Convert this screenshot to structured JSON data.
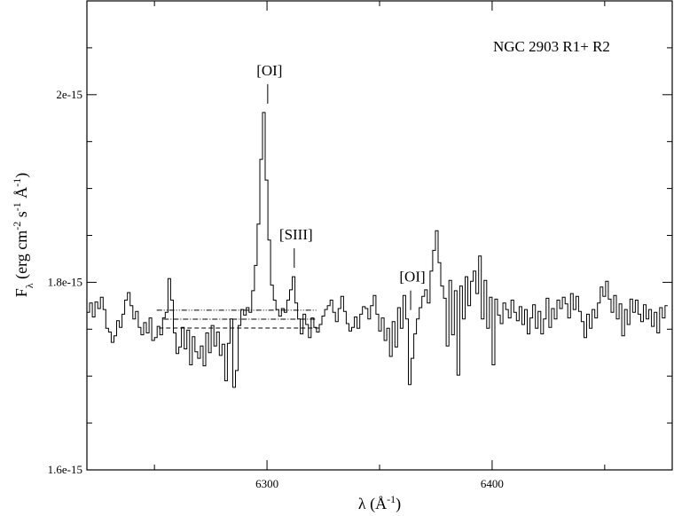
{
  "chart_data": {
    "type": "line",
    "title": "",
    "annotations": {
      "object_label": "NGC 2903  R1+ R2",
      "lines": [
        {
          "label": "[OI]",
          "x": 6300.3
        },
        {
          "label": "[SIII]",
          "x": 6312.1
        },
        {
          "label": "[OI]",
          "x": 6363.8
        }
      ]
    },
    "xlabel": {
      "main": "λ (Å",
      "sup": "-1",
      "close": ")"
    },
    "ylabel": {
      "base": "F",
      "sub": "λ",
      "mid": " (erg cm",
      "sup1": "-2",
      "mid2": " s",
      "sup2": "-1",
      "mid3": " Å",
      "sup3": "-1",
      "close": ")"
    },
    "xlim": [
      6220,
      6480
    ],
    "ylim": [
      1.6e-15,
      2.1e-15
    ],
    "x_ticks": [
      {
        "value": 6300,
        "label": "6300"
      },
      {
        "value": 6400,
        "label": "6400"
      }
    ],
    "y_ticks": [
      {
        "value": 1.6e-15,
        "label": "1.6e-15"
      },
      {
        "value": 1.8e-15,
        "label": "1.8e-15"
      },
      {
        "value": 2e-15,
        "label": "2e-15"
      }
    ],
    "grid": false,
    "continuum_levels": [
      {
        "name": "dash-dot-dot",
        "x": [
          6251,
          6322
        ],
        "y": 1.7702e-15
      },
      {
        "name": "dash-dot",
        "x": [
          6254,
          6322
        ],
        "y": 1.7607e-15
      },
      {
        "name": "dashed",
        "x": [
          6252,
          6323
        ],
        "y": 1.7512e-15
      }
    ],
    "series": [
      {
        "x_start": 6220,
        "x_step": 1.2,
        "values": [
          1.768e-15,
          1.778e-15,
          1.763e-15,
          1.779e-15,
          1.772e-15,
          1.784e-15,
          1.771e-15,
          1.751e-15,
          1.747e-15,
          1.736e-15,
          1.743e-15,
          1.759e-15,
          1.752e-15,
          1.766e-15,
          1.781e-15,
          1.789e-15,
          1.775e-15,
          1.761e-15,
          1.769e-15,
          1.752e-15,
          1.744e-15,
          1.757e-15,
          1.746e-15,
          1.762e-15,
          1.738e-15,
          1.741e-15,
          1.753e-15,
          1.744e-15,
          1.762e-15,
          1.768e-15,
          1.804e-15,
          1.781e-15,
          1.746e-15,
          1.724e-15,
          1.731e-15,
          1.752e-15,
          1.729e-15,
          1.749e-15,
          1.712e-15,
          1.742e-15,
          1.726e-15,
          1.719e-15,
          1.732e-15,
          1.711e-15,
          1.746e-15,
          1.725e-15,
          1.754e-15,
          1.732e-15,
          1.747e-15,
          1.722e-15,
          1.734e-15,
          1.695e-15,
          1.735e-15,
          1.761e-15,
          1.688e-15,
          1.706e-15,
          1.754e-15,
          1.771e-15,
          1.765e-15,
          1.773e-15,
          1.768e-15,
          1.791e-15,
          1.818e-15,
          1.862e-15,
          1.931e-15,
          1.981e-15,
          1.909e-15,
          1.845e-15,
          1.797e-15,
          1.781e-15,
          1.771e-15,
          1.764e-15,
          1.772e-15,
          1.768e-15,
          1.781e-15,
          1.792e-15,
          1.806e-15,
          1.778e-15,
          1.761e-15,
          1.745e-15,
          1.766e-15,
          1.755e-15,
          1.741e-15,
          1.762e-15,
          1.752e-15,
          1.747e-15,
          1.755e-15,
          1.764e-15,
          1.771e-15,
          1.775e-15,
          1.781e-15,
          1.768e-15,
          1.758e-15,
          1.772e-15,
          1.785e-15,
          1.769e-15,
          1.756e-15,
          1.748e-15,
          1.752e-15,
          1.763e-15,
          1.751e-15,
          1.766e-15,
          1.774e-15,
          1.772e-15,
          1.761e-15,
          1.775e-15,
          1.786e-15,
          1.766e-15,
          1.748e-15,
          1.762e-15,
          1.738e-15,
          1.751e-15,
          1.721e-15,
          1.758e-15,
          1.731e-15,
          1.773e-15,
          1.751e-15,
          1.786e-15,
          1.761e-15,
          1.691e-15,
          1.719e-15,
          1.745e-15,
          1.761e-15,
          1.773e-15,
          1.785e-15,
          1.792e-15,
          1.778e-15,
          1.812e-15,
          1.834e-15,
          1.855e-15,
          1.821e-15,
          1.796e-15,
          1.783e-15,
          1.732e-15,
          1.802e-15,
          1.744e-15,
          1.791e-15,
          1.701e-15,
          1.796e-15,
          1.761e-15,
          1.806e-15,
          1.775e-15,
          1.801e-15,
          1.812e-15,
          1.788e-15,
          1.828e-15,
          1.761e-15,
          1.802e-15,
          1.751e-15,
          1.784e-15,
          1.712e-15,
          1.782e-15,
          1.765e-15,
          1.756e-15,
          1.778e-15,
          1.771e-15,
          1.762e-15,
          1.781e-15,
          1.768e-15,
          1.759e-15,
          1.774e-15,
          1.755e-15,
          1.771e-15,
          1.745e-15,
          1.762e-15,
          1.776e-15,
          1.751e-15,
          1.769e-15,
          1.745e-15,
          1.761e-15,
          1.783e-15,
          1.752e-15,
          1.772e-15,
          1.761e-15,
          1.781e-15,
          1.772e-15,
          1.784e-15,
          1.777e-15,
          1.762e-15,
          1.788e-15,
          1.771e-15,
          1.785e-15,
          1.769e-15,
          1.758e-15,
          1.741e-15,
          1.766e-15,
          1.751e-15,
          1.771e-15,
          1.762e-15,
          1.778e-15,
          1.795e-15,
          1.785e-15,
          1.801e-15,
          1.782e-15,
          1.768e-15,
          1.786e-15,
          1.761e-15,
          1.777e-15,
          1.743e-15,
          1.771e-15,
          1.755e-15,
          1.782e-15,
          1.768e-15,
          1.781e-15,
          1.766e-15,
          1.758e-15,
          1.776e-15,
          1.761e-15,
          1.771e-15,
          1.753e-15,
          1.768e-15,
          1.746e-15,
          1.773e-15,
          1.762e-15,
          1.775e-15
        ]
      }
    ]
  }
}
